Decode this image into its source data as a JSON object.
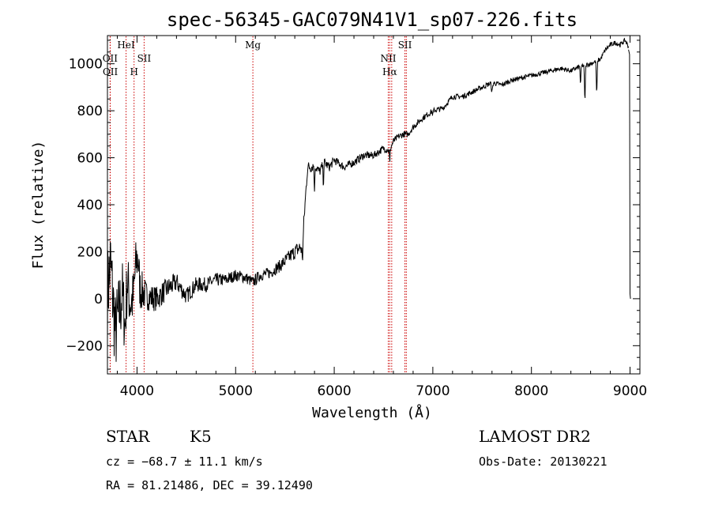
{
  "chart_data": {
    "type": "line",
    "title": "spec-56345-GAC079N41V1_sp07-226.fits",
    "xlabel": "Wavelength (Å)",
    "ylabel": "Flux (relative)",
    "xlim": [
      3700,
      9100
    ],
    "ylim": [
      -320,
      1120
    ],
    "x_ticks": [
      {
        "value": 4000,
        "label": "4000"
      },
      {
        "value": 5000,
        "label": "5000"
      },
      {
        "value": 6000,
        "label": "6000"
      },
      {
        "value": 7000,
        "label": "7000"
      },
      {
        "value": 8000,
        "label": "8000"
      },
      {
        "value": 9000,
        "label": "9000"
      }
    ],
    "y_ticks": [
      {
        "value": -200,
        "label": "−200"
      },
      {
        "value": 0,
        "label": "0"
      },
      {
        "value": 200,
        "label": "200"
      },
      {
        "value": 400,
        "label": "400"
      },
      {
        "value": 600,
        "label": "600"
      },
      {
        "value": 800,
        "label": "800"
      },
      {
        "value": 1000,
        "label": "1000"
      }
    ],
    "grid": false,
    "line_color": "#000000",
    "marker_color": "#cc0000",
    "series_anchors": [
      [
        3700,
        20
      ],
      [
        3730,
        150
      ],
      [
        3750,
        30
      ],
      [
        3780,
        -150
      ],
      [
        3810,
        -80
      ],
      [
        3850,
        20
      ],
      [
        3880,
        -120
      ],
      [
        3900,
        80
      ],
      [
        3930,
        -20
      ],
      [
        3960,
        0
      ],
      [
        3990,
        150
      ],
      [
        4010,
        180
      ],
      [
        4030,
        40
      ],
      [
        4060,
        30
      ],
      [
        4100,
        10
      ],
      [
        4200,
        0
      ],
      [
        4300,
        40
      ],
      [
        4400,
        70
      ],
      [
        4500,
        10
      ],
      [
        4600,
        60
      ],
      [
        4700,
        60
      ],
      [
        4800,
        80
      ],
      [
        4900,
        80
      ],
      [
        5000,
        100
      ],
      [
        5100,
        90
      ],
      [
        5175,
        70
      ],
      [
        5250,
        100
      ],
      [
        5350,
        110
      ],
      [
        5450,
        140
      ],
      [
        5550,
        180
      ],
      [
        5600,
        200
      ],
      [
        5660,
        220
      ],
      [
        5680,
        180
      ],
      [
        5690,
        310
      ],
      [
        5710,
        440
      ],
      [
        5730,
        560
      ],
      [
        5760,
        560
      ],
      [
        5800,
        570
      ],
      [
        5850,
        540
      ],
      [
        5900,
        580
      ],
      [
        5950,
        560
      ],
      [
        6000,
        590
      ],
      [
        6100,
        560
      ],
      [
        6200,
        580
      ],
      [
        6300,
        610
      ],
      [
        6400,
        610
      ],
      [
        6500,
        640
      ],
      [
        6560,
        630
      ],
      [
        6600,
        670
      ],
      [
        6650,
        690
      ],
      [
        6700,
        700
      ],
      [
        6750,
        700
      ],
      [
        6800,
        730
      ],
      [
        6900,
        770
      ],
      [
        7000,
        800
      ],
      [
        7100,
        810
      ],
      [
        7200,
        860
      ],
      [
        7300,
        860
      ],
      [
        7400,
        880
      ],
      [
        7500,
        900
      ],
      [
        7600,
        920
      ],
      [
        7700,
        910
      ],
      [
        7800,
        930
      ],
      [
        7900,
        940
      ],
      [
        8000,
        950
      ],
      [
        8100,
        960
      ],
      [
        8200,
        970
      ],
      [
        8300,
        980
      ],
      [
        8400,
        970
      ],
      [
        8500,
        990
      ],
      [
        8600,
        1000
      ],
      [
        8700,
        1020
      ],
      [
        8750,
        1060
      ],
      [
        8800,
        1080
      ],
      [
        8850,
        1090
      ],
      [
        8900,
        1080
      ],
      [
        8950,
        1100
      ],
      [
        9000,
        1060
      ]
    ],
    "features": [
      {
        "wl": 8498,
        "depth": 80,
        "width": 5
      },
      {
        "wl": 8542,
        "depth": 150,
        "width": 6
      },
      {
        "wl": 8662,
        "depth": 140,
        "width": 6
      },
      {
        "wl": 6563,
        "depth": 60,
        "width": 4
      },
      {
        "wl": 5890,
        "depth": 80,
        "width": 5
      },
      {
        "wl": 5800,
        "depth": 130,
        "width": 4
      },
      {
        "wl": 7600,
        "depth": 40,
        "width": 8
      },
      {
        "wl": 7000,
        "depth": 20,
        "width": 5
      }
    ],
    "noise_profile": [
      [
        3700,
        200
      ],
      [
        3800,
        180
      ],
      [
        3900,
        140
      ],
      [
        4000,
        110
      ],
      [
        4100,
        60
      ],
      [
        4500,
        35
      ],
      [
        5000,
        25
      ],
      [
        5400,
        25
      ],
      [
        5660,
        35
      ],
      [
        5750,
        25
      ],
      [
        6000,
        18
      ],
      [
        7000,
        12
      ],
      [
        8000,
        10
      ],
      [
        9000,
        10
      ]
    ],
    "end_segments": [
      [
        [
          8985,
          1060
        ],
        [
          8995,
          1040
        ],
        [
          9000,
          20
        ],
        [
          9005,
          0
        ]
      ]
    ],
    "line_markers": [
      {
        "wl": 3727,
        "label": "OII",
        "row": 1
      },
      {
        "wl": 3729,
        "label": "OII",
        "row": 2
      },
      {
        "wl": 3889,
        "label": "HeI",
        "row": 0
      },
      {
        "wl": 3970,
        "label": "H",
        "row": 2
      },
      {
        "wl": 4072,
        "label": "SII",
        "row": 1
      },
      {
        "wl": 5175,
        "label": "Mg",
        "row": 0
      },
      {
        "wl": 6548,
        "label": "NII",
        "row": 1
      },
      {
        "wl": 6563,
        "label": "Hα",
        "row": 2
      },
      {
        "wl": 6583,
        "label": "",
        "row": 2
      },
      {
        "wl": 6717,
        "label": "SII",
        "row": 0
      },
      {
        "wl": 6731,
        "label": "",
        "row": 0
      }
    ]
  },
  "info": {
    "class_label": "STAR",
    "subclass_label": "K5",
    "redshift": "cz = −68.7 ± 11.1 km/s",
    "coords": "RA =  81.21486, DEC =  39.12490",
    "survey": "LAMOST DR2",
    "obs_date": "Obs-Date: 20130221"
  }
}
